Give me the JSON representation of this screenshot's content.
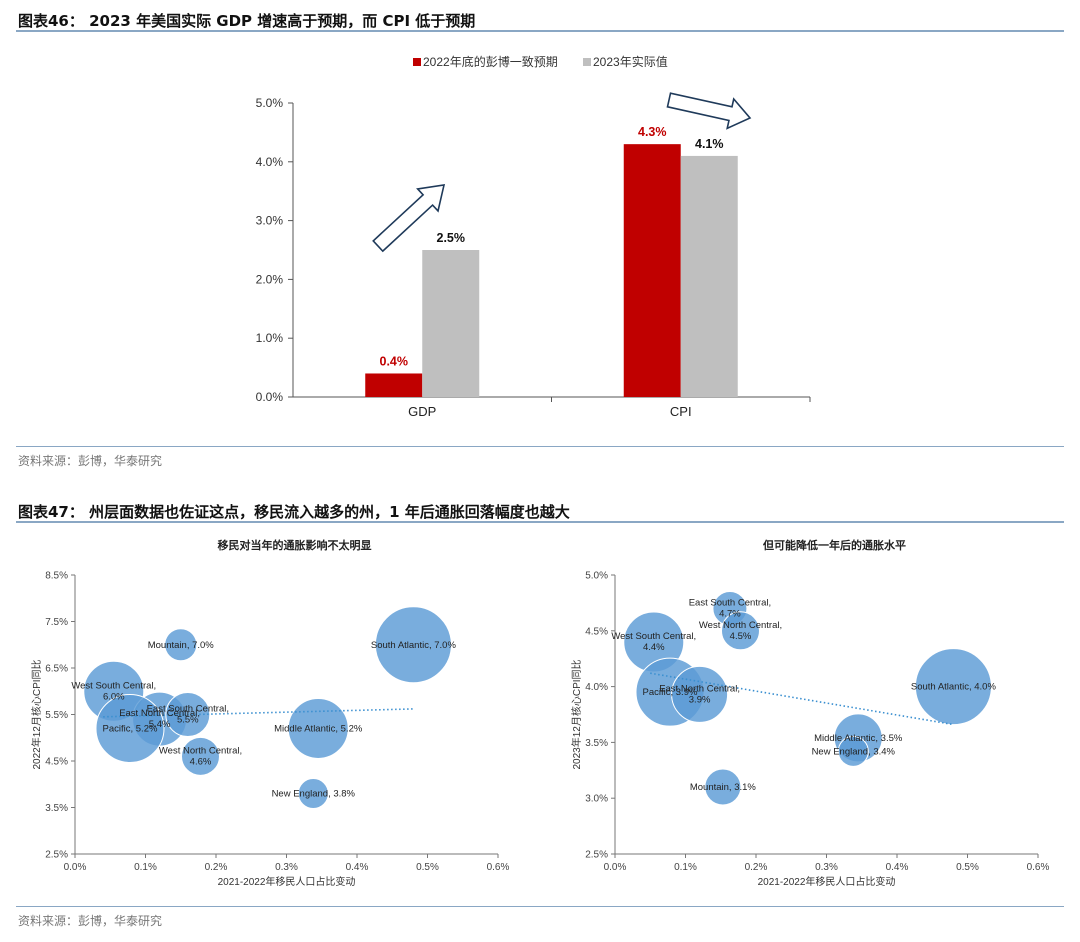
{
  "figure46": {
    "title": "图表46：  2023 年美国实际 GDP 增速高于预期，而 CPI 低于预期",
    "source": "资料来源：彭博，华泰研究"
  },
  "figure47": {
    "title": "图表47：  州层面数据也佐证这点，移民流入越多的州，1 年后通胀回落幅度也越大",
    "source": "资料来源：彭博，华泰研究"
  },
  "chart_data": [
    {
      "type": "bar",
      "categories": [
        "GDP",
        "CPI"
      ],
      "series": [
        {
          "name": "2022年底的彭博一致预期",
          "values": [
            0.4,
            4.3
          ],
          "color": "#c00000",
          "labels": [
            "0.4%",
            "4.3%"
          ]
        },
        {
          "name": "2023年实际值",
          "values": [
            2.5,
            4.1
          ],
          "color": "#bfbfbf",
          "labels": [
            "2.5%",
            "4.1%"
          ]
        }
      ],
      "ylim": [
        0,
        5
      ],
      "yticks": [
        "0.0%",
        "1.0%",
        "2.0%",
        "3.0%",
        "4.0%",
        "5.0%"
      ],
      "legend": "top",
      "annotations": [
        "arrow-up-right",
        "arrow-right"
      ]
    },
    {
      "type": "scatter",
      "title": "移民对当年的通胀影响不太明显",
      "xlabel": "2021-2022年移民人口占比变动",
      "ylabel": "2022年12月核心CPI同比",
      "xlim": [
        0,
        0.6
      ],
      "ylim": [
        2.5,
        8.5
      ],
      "xticks": [
        "0.0%",
        "0.1%",
        "0.2%",
        "0.3%",
        "0.4%",
        "0.5%",
        "0.6%"
      ],
      "yticks": [
        "2.5%",
        "3.5%",
        "4.5%",
        "5.5%",
        "6.5%",
        "7.5%",
        "8.5%"
      ],
      "points": [
        {
          "label": "Mountain, 7.0%",
          "x": 0.15,
          "y": 7.0,
          "size": 16
        },
        {
          "label": "South Atlantic, 7.0%",
          "x": 0.48,
          "y": 7.0,
          "size": 38
        },
        {
          "label": "West South Central, 6.0%",
          "x": 0.055,
          "y": 6.0,
          "size": 30
        },
        {
          "label": "East North Central, 5.4%",
          "x": 0.12,
          "y": 5.4,
          "size": 27
        },
        {
          "label": "East South Central, 5.5%",
          "x": 0.16,
          "y": 5.5,
          "size": 22
        },
        {
          "label": "West North Central, 4.6%",
          "x": 0.178,
          "y": 4.6,
          "size": 19
        },
        {
          "label": "Pacific, 5.2%",
          "x": 0.078,
          "y": 5.2,
          "size": 34
        },
        {
          "label": "Middle Atlantic, 5.2%",
          "x": 0.345,
          "y": 5.2,
          "size": 30
        },
        {
          "label": "New England, 3.8%",
          "x": 0.338,
          "y": 3.8,
          "size": 15
        }
      ],
      "trendline": [
        [
          0.04,
          5.45
        ],
        [
          0.48,
          5.62
        ]
      ]
    },
    {
      "type": "scatter",
      "title": "但可能降低一年后的通胀水平",
      "xlabel": "2021-2022年移民人口占比变动",
      "ylabel": "2023年12月核心CPI同比",
      "xlim": [
        0,
        0.6
      ],
      "ylim": [
        2.5,
        5.0
      ],
      "xticks": [
        "0.0%",
        "0.1%",
        "0.2%",
        "0.3%",
        "0.4%",
        "0.5%",
        "0.6%"
      ],
      "yticks": [
        "2.5%",
        "3.0%",
        "3.5%",
        "4.0%",
        "4.5%",
        "5.0%"
      ],
      "points": [
        {
          "label": "East South Central, 4.7%",
          "x": 0.163,
          "y": 4.7,
          "size": 17
        },
        {
          "label": "West North Central, 4.5%",
          "x": 0.178,
          "y": 4.5,
          "size": 19
        },
        {
          "label": "West South Central, 4.4%",
          "x": 0.055,
          "y": 4.4,
          "size": 30
        },
        {
          "label": "Pacific, 3.9%",
          "x": 0.078,
          "y": 3.95,
          "size": 34
        },
        {
          "label": "East North Central, 3.9%",
          "x": 0.12,
          "y": 3.93,
          "size": 28
        },
        {
          "label": "South Atlantic, 4.0%",
          "x": 0.48,
          "y": 4.0,
          "size": 38
        },
        {
          "label": "Middle Atlantic, 3.5%",
          "x": 0.345,
          "y": 3.54,
          "size": 24
        },
        {
          "label": "New England, 3.4%",
          "x": 0.338,
          "y": 3.42,
          "size": 15
        },
        {
          "label": "Mountain, 3.1%",
          "x": 0.153,
          "y": 3.1,
          "size": 18
        }
      ],
      "trendline": [
        [
          0.05,
          4.12
        ],
        [
          0.48,
          3.66
        ]
      ]
    }
  ]
}
